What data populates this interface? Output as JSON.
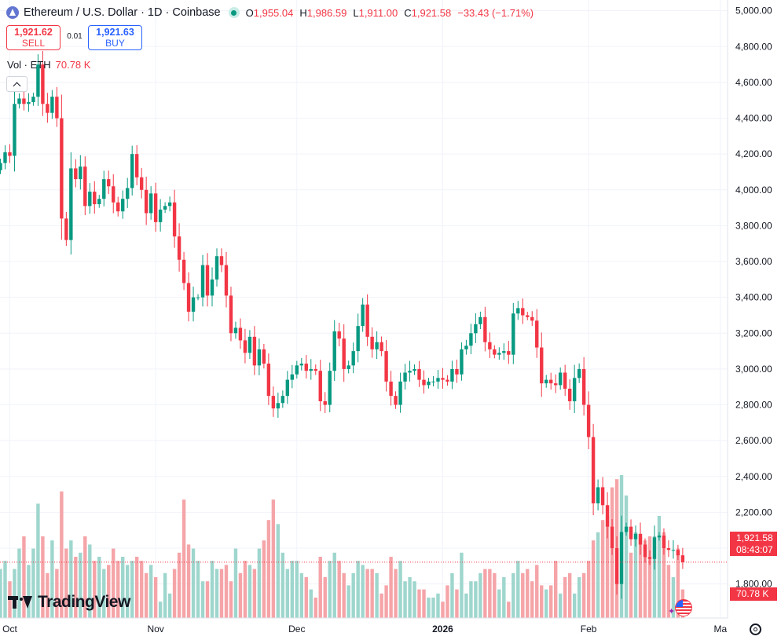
{
  "header": {
    "title": "Ethereum / U.S. Dollar · 1D · Coinbase",
    "ohlc": {
      "o_label": "O",
      "o": "1,955.04",
      "h_label": "H",
      "h": "1,986.59",
      "l_label": "L",
      "l": "1,911.00",
      "c_label": "C",
      "c": "1,921.58",
      "change": "−33.43 (−1.71%)"
    }
  },
  "trade": {
    "sell_price": "1,921.62",
    "sell_label": "SELL",
    "spread": "0.01",
    "buy_price": "1,921.63",
    "buy_label": "BUY"
  },
  "volume": {
    "label": "Vol · ETH",
    "value": "70.78 K"
  },
  "price_tag": {
    "price": "1,921.58",
    "countdown": "08:43:07"
  },
  "volume_tag": "70.78 K",
  "logo_text": "TradingView",
  "colors": {
    "up": "#089981",
    "down": "#f23645",
    "up_volume": "#9ed6cd",
    "down_volume": "#f5a4a8",
    "grid": "#f0f3fa"
  },
  "chart_data": {
    "type": "candlestick",
    "y_axis": {
      "range": [
        1610,
        5060
      ],
      "ticks": [
        1800,
        2000,
        2200,
        2400,
        2600,
        2800,
        3000,
        3200,
        3400,
        3600,
        3800,
        4000,
        4200,
        4400,
        4600,
        4800,
        5000
      ],
      "tick_labels": [
        "1,800.00",
        "2,000.00",
        "2,200.00",
        "2,400.00",
        "2,600.00",
        "2,800.00",
        "3,000.00",
        "3,200.00",
        "3,400.00",
        "3,600.00",
        "3,800.00",
        "4,000.00",
        "4,200.00",
        "4,400.00",
        "4,600.00",
        "4,800.00",
        "5,000.00"
      ],
      "position": "right"
    },
    "x_axis": {
      "labels": [
        {
          "text": "Oct",
          "date": "2025-10-01"
        },
        {
          "text": "Nov",
          "date": "2025-11-01"
        },
        {
          "text": "Dec",
          "date": "2025-12-01"
        },
        {
          "text": "2026",
          "date": "2026-01-01",
          "bold": true
        },
        {
          "text": "Feb",
          "date": "2026-02-01"
        },
        {
          "text": "Ma",
          "date": "2026-03-01"
        }
      ],
      "first_date": "2025-09-29",
      "last_date": "2026-02-15"
    },
    "last_price_line": 1921.58,
    "grid": true,
    "close": [
      4150,
      4210,
      4190,
      4480,
      4510,
      4480,
      4490,
      4520,
      4700,
      4480,
      4430,
      4520,
      4400,
      3840,
      3720,
      4120,
      4060,
      4130,
      3910,
      3990,
      3920,
      3950,
      4060,
      4020,
      3930,
      3880,
      3950,
      4010,
      4200,
      4070,
      4000,
      3870,
      3980,
      3820,
      3890,
      3910,
      3930,
      3740,
      3610,
      3480,
      3320,
      3400,
      3400,
      3580,
      3410,
      3500,
      3630,
      3580,
      3410,
      3200,
      3230,
      3160,
      3090,
      3180,
      3020,
      3110,
      3030,
      2850,
      2780,
      2810,
      2850,
      2940,
      2970,
      3020,
      3030,
      2990,
      3000,
      2990,
      2820,
      2800,
      2990,
      3210,
      3170,
      3000,
      3020,
      3100,
      3240,
      3360,
      3180,
      3110,
      3150,
      3100,
      2930,
      2850,
      2800,
      2930,
      2980,
      2990,
      3000,
      2940,
      2910,
      2930,
      2930,
      2950,
      2940,
      2930,
      3000,
      2970,
      3110,
      3130,
      3200,
      3250,
      3290,
      3150,
      3110,
      3080,
      3090,
      3100,
      3080,
      3310,
      3340,
      3300,
      3290,
      3270,
      3120,
      2920,
      2940,
      2920,
      2910,
      2980,
      2890,
      2820,
      2950,
      3000,
      2800,
      2620,
      2250,
      2340,
      2240,
      2120,
      2000,
      1800,
      2090,
      2120,
      2050,
      2080,
      2020,
      1950,
      1940,
      2060,
      2070,
      2000,
      1990,
      1990,
      1960,
      1921.58
    ],
    "volume": [
      12,
      14,
      9,
      12,
      17,
      20,
      13,
      17,
      28,
      20,
      11,
      19,
      12,
      31,
      17,
      19,
      15,
      16,
      20,
      18,
      14,
      15,
      12,
      13,
      17,
      14,
      15,
      13,
      14,
      15,
      14,
      11,
      13,
      10,
      4,
      11,
      6,
      12,
      16,
      29,
      18,
      17,
      14,
      9,
      9,
      14,
      12,
      12,
      13,
      9,
      17,
      11,
      14,
      13,
      12,
      17,
      19,
      24,
      29,
      23,
      16,
      12,
      14,
      14,
      11,
      10,
      7,
      5,
      15,
      10,
      14,
      16,
      14,
      11,
      8,
      11,
      14,
      13,
      12,
      12,
      11,
      6,
      8,
      15,
      12,
      14,
      9,
      10,
      9,
      7,
      7,
      5,
      5,
      6,
      4,
      8,
      11,
      7,
      16,
      6,
      9,
      9,
      11,
      12,
      12,
      11,
      7,
      10,
      4,
      11,
      14,
      11,
      12,
      9,
      13,
      8,
      7,
      8,
      14,
      6,
      10,
      11,
      6,
      10,
      11,
      14,
      19,
      21,
      24,
      25,
      32,
      34,
      35,
      30,
      16,
      21,
      20,
      19,
      20,
      20,
      25,
      21,
      13,
      10,
      17,
      7
    ]
  }
}
